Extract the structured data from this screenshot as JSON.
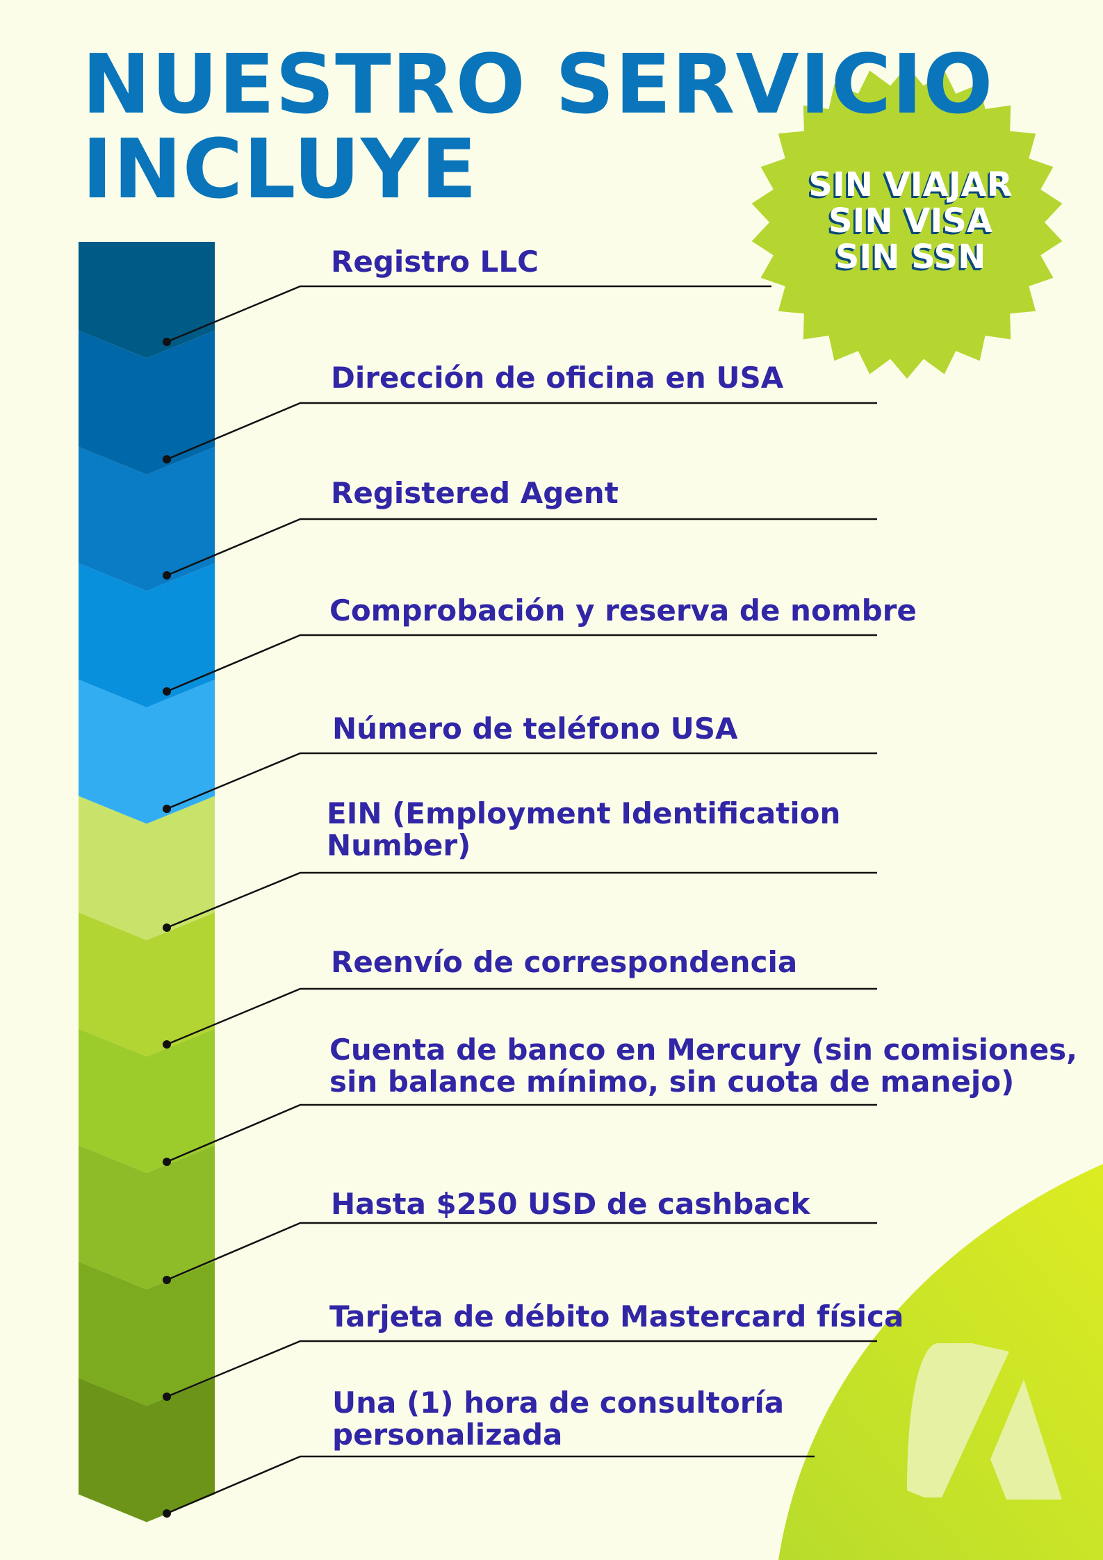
{
  "title": {
    "line1": "NUESTRO SERVICIO",
    "line2": "INCLUYE"
  },
  "badge": {
    "line1": "SIN VIAJAR",
    "line2": "SIN VISA",
    "line3": "SIN SSN"
  },
  "items": [
    {
      "lines": [
        "Registro LLC"
      ]
    },
    {
      "lines": [
        "Dirección de oficina en USA"
      ]
    },
    {
      "lines": [
        "Registered Agent"
      ]
    },
    {
      "lines": [
        "Comprobación y reserva de nombre"
      ]
    },
    {
      "lines": [
        "Número de teléfono USA"
      ]
    },
    {
      "lines": [
        "EIN (Employment Identification",
        "Number)"
      ]
    },
    {
      "lines": [
        "Reenvío de correspondencia"
      ]
    },
    {
      "lines": [
        "Cuenta de banco en Mercury (sin comisiones,",
        "sin balance mínimo, sin cuota de manejo)"
      ]
    },
    {
      "lines": [
        "Hasta $250 USD de cashback"
      ]
    },
    {
      "lines": [
        "Tarjeta de débito Mastercard física"
      ]
    },
    {
      "lines": [
        "Una (1) hora de consultoría",
        "personalizada"
      ]
    }
  ],
  "colors": {
    "background": "#fbfde9",
    "title": "#0a75ba",
    "item_text": "#3126a6",
    "badge": "#b5d631",
    "segments": [
      "#005a86",
      "#0068a8",
      "#0a7cc5",
      "#0990dd",
      "#33adf1",
      "#c9e36a",
      "#b2d534",
      "#9ccb2c",
      "#8dbc28",
      "#7cab1f",
      "#6b9418"
    ]
  },
  "icons": {
    "logo": "stylized-a-logo-icon"
  }
}
